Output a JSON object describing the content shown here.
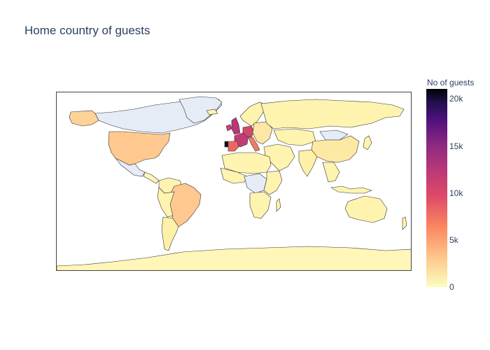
{
  "title": "Home country of guests",
  "colorbar": {
    "title": "No of guests",
    "ticks": [
      "20k",
      "15k",
      "10k",
      "5k",
      "0"
    ],
    "min": 0,
    "max": 21000,
    "colorscale": [
      "#fcfdbf",
      "#fec287",
      "#fb8861",
      "#de4968",
      "#b73779",
      "#8c2981",
      "#51127c",
      "#221150",
      "#000004"
    ]
  },
  "map": {
    "projection": "equirectangular",
    "no_data_color": "#e5ecf6",
    "border_color": "#444444",
    "highlighted_countries": [
      "PRT",
      "GBR",
      "FRA",
      "ESP",
      "DEU",
      "IRL",
      "BRA",
      "USA"
    ]
  }
}
